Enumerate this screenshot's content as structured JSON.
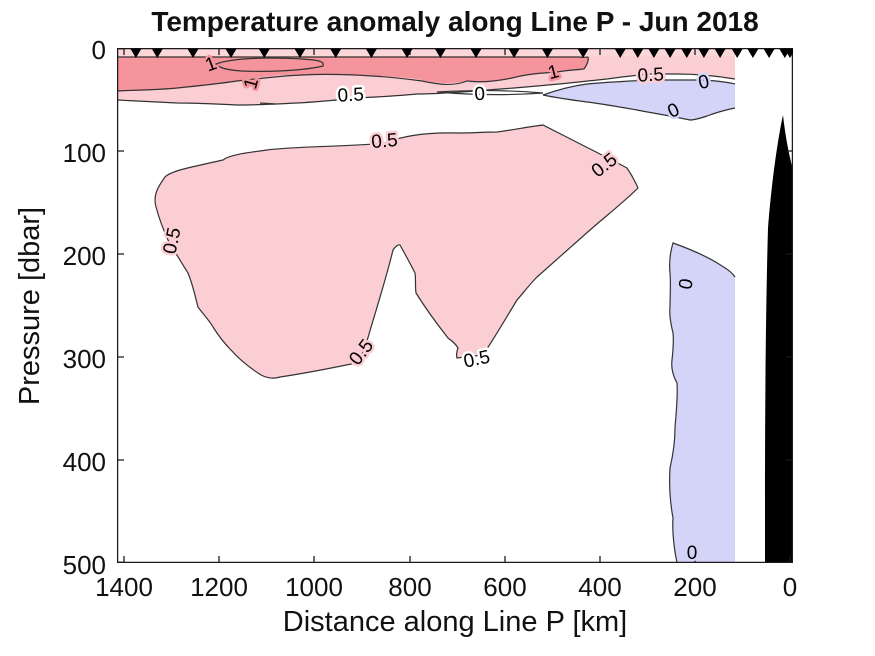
{
  "chart_data": {
    "type": "filled_contour",
    "title": "Temperature anomaly along Line P - Jun 2018",
    "xlabel": "Distance along Line P [km]",
    "ylabel": "Pressure [dbar]",
    "x_tick_labels": [
      "1400",
      "1200",
      "1000",
      "800",
      "600",
      "400",
      "200",
      "0"
    ],
    "y_tick_labels": [
      "0",
      "100",
      "200",
      "300",
      "400",
      "500"
    ],
    "x_axis": {
      "min": -10,
      "max": 1415,
      "direction": "reversed (0 km at right, coast side)"
    },
    "y_axis": {
      "min": 0,
      "max": 500,
      "direction": "increasing downward (depth)"
    },
    "contour_levels": [
      0,
      0.5,
      1
    ],
    "colors": {
      "anomaly_above_1": "#F5949C",
      "anomaly_0p5_to_1": "#FBCED3",
      "surface_strip": "#FBD7DA",
      "anomaly_below_0": "#D4D4F9",
      "no_anomaly_0_to_0p5": "#ffffff",
      "bathymetry": "#000000",
      "contour_line": "#333333"
    },
    "stations_km": [
      1375,
      1330,
      1255,
      1175,
      1105,
      1030,
      955,
      880,
      805,
      735,
      660,
      580,
      510,
      435,
      357,
      320,
      286,
      252,
      217,
      181,
      147,
      111,
      78,
      44,
      11,
      0
    ],
    "regions": [
      "warm surface layer (>1) from ~450 km to 1415 km, 0-45 dbar",
      "warm band (0.5-1) across surface 0-55 dbar out to ~120 km",
      "large subsurface warm pool (0.5-1) ~250-1330 km, 90-380 dbar, notched near 850 km",
      "cool lens (<0) near surface ~120-480 km, 30-70 dbar",
      "cool column (<0) ~120-260 km from ~240 dbar to bottom",
      "black seafloor/bathymetry wedge near coast, 0-60 km, below ~65 dbar"
    ],
    "contour_labels": [
      {
        "text": "1",
        "km": 1213,
        "dbar": 15,
        "rotation_deg": -20
      },
      {
        "text": "1",
        "km": 1120,
        "dbar": 29,
        "rotation_deg": -75
      },
      {
        "text": "0.5",
        "km": 923,
        "dbar": 45,
        "rotation_deg": -3
      },
      {
        "text": "1",
        "km": 494,
        "dbar": 22,
        "rotation_deg": -15
      },
      {
        "text": "0.5",
        "km": 292,
        "dbar": 25,
        "rotation_deg": -3
      },
      {
        "text": "0",
        "km": 652,
        "dbar": 44,
        "rotation_deg": -3
      },
      {
        "text": "0",
        "km": 179,
        "dbar": 32,
        "rotation_deg": -12
      },
      {
        "text": "0",
        "km": 240,
        "dbar": 59,
        "rotation_deg": -25
      },
      {
        "text": "0.5",
        "km": 851,
        "dbar": 89,
        "rotation_deg": -5
      },
      {
        "text": "0.5",
        "km": 1287,
        "dbar": 182,
        "rotation_deg": -78
      },
      {
        "text": "0.5",
        "km": 383,
        "dbar": 112,
        "rotation_deg": -38
      },
      {
        "text": "0.5",
        "km": 891,
        "dbar": 292,
        "rotation_deg": -52
      },
      {
        "text": "0.5",
        "km": 656,
        "dbar": 301,
        "rotation_deg": -12
      },
      {
        "text": "0",
        "km": 206,
        "dbar": 223,
        "rotation_deg": -80
      },
      {
        "text": "0",
        "km": 206,
        "dbar": 496,
        "rotation_deg": 0
      }
    ]
  }
}
